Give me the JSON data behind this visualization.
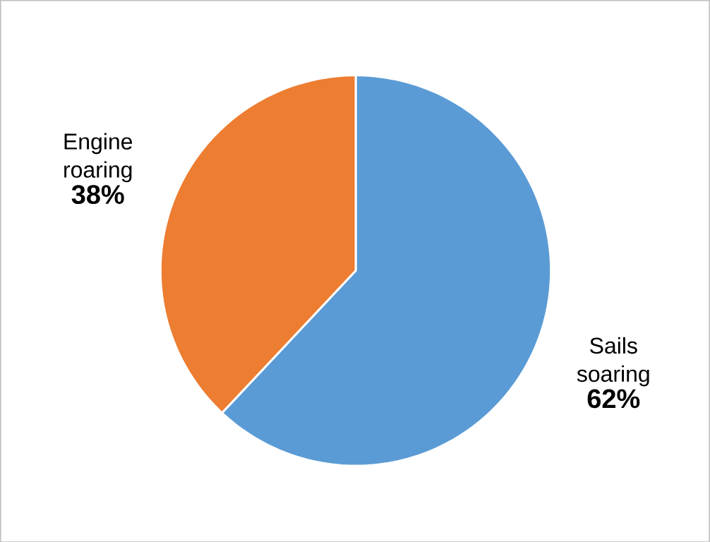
{
  "chart_data": {
    "type": "pie",
    "categories": [
      "Sails soaring",
      "Engine roaring"
    ],
    "values": [
      62,
      38
    ],
    "colors": [
      "#5b9bd5",
      "#ed7d31"
    ],
    "value_labels": [
      "62%",
      "38%"
    ]
  }
}
